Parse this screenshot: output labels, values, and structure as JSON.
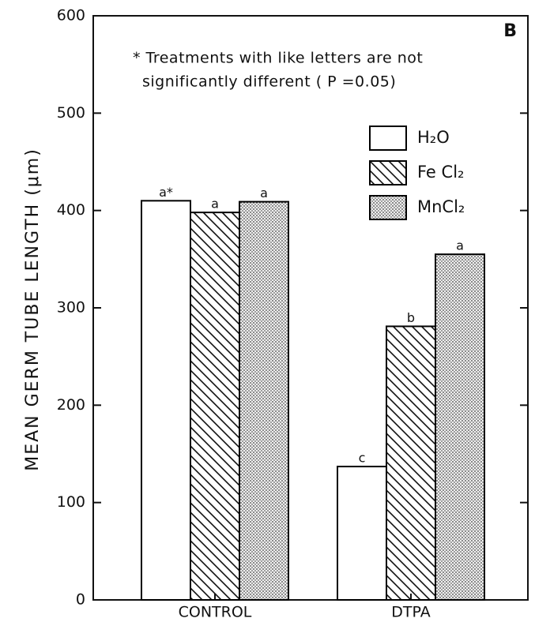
{
  "chart_data": {
    "type": "bar",
    "panel_label": "B",
    "note": [
      "* Treatments with like letters are not",
      "significantly different ( P =0.05)"
    ],
    "ylabel": "MEAN GERM TUBE LENGTH (μm)",
    "categories": [
      "CONTROL",
      "DTPA"
    ],
    "series": [
      {
        "name": "H₂O",
        "color": "#000000",
        "pattern": "none",
        "values": [
          410,
          137
        ],
        "letters": [
          "a*",
          "c"
        ]
      },
      {
        "name": "Fe Cl₂",
        "color": "#000000",
        "pattern": "hatch",
        "values": [
          398,
          281
        ],
        "letters": [
          "a",
          "b"
        ]
      },
      {
        "name": "MnCl₂",
        "color": "#000000",
        "pattern": "dots",
        "values": [
          409,
          355
        ],
        "letters": [
          "a",
          "a"
        ]
      }
    ],
    "ylim": [
      0,
      600
    ],
    "yticks": [
      0,
      100,
      200,
      300,
      400,
      500,
      600
    ],
    "grid": false,
    "legend": "upper right"
  }
}
